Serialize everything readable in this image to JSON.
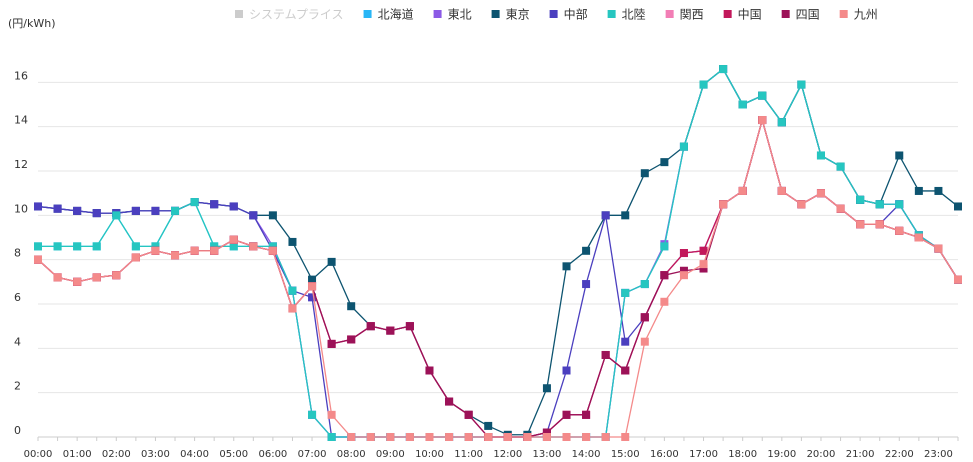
{
  "chart_data": {
    "type": "line",
    "y_label": "(円/kWh)",
    "categories": [
      "00:00",
      null,
      "01:00",
      null,
      "02:00",
      null,
      "03:00",
      null,
      "04:00",
      null,
      "05:00",
      null,
      "06:00",
      null,
      "07:00",
      null,
      "08:00",
      null,
      "09:00",
      null,
      "10:00",
      null,
      "11:00",
      null,
      "12:00",
      null,
      "13:00",
      null,
      "14:00",
      null,
      "15:00",
      null,
      "16:00",
      null,
      "17:00",
      null,
      "18:00",
      null,
      "19:00",
      null,
      "20:00",
      null,
      "21:00",
      null,
      "22:00",
      null,
      "23:00",
      null
    ],
    "ylim": [
      0,
      18
    ],
    "yticks": [
      0,
      2,
      4,
      6,
      8,
      10,
      12,
      14,
      16
    ],
    "grid": true,
    "series": [
      {
        "name": "システムプライス",
        "color": "#cccccc",
        "visible": false,
        "values": [
          null,
          null,
          null,
          null,
          null,
          null,
          null,
          null,
          null,
          null,
          null,
          null,
          null,
          null,
          null,
          null,
          null,
          null,
          null,
          null,
          null,
          null,
          null,
          null,
          null,
          null,
          null,
          null,
          null,
          null,
          null,
          null,
          null,
          null,
          null,
          null,
          null,
          null,
          null,
          null,
          null,
          null,
          null,
          null,
          null,
          null,
          null,
          null
        ]
      },
      {
        "name": "北海道",
        "color": "#29b6f6",
        "values": [
          8.6,
          8.6,
          8.6,
          8.6,
          10.0,
          8.6,
          8.6,
          10.2,
          10.6,
          8.6,
          8.6,
          8.6,
          8.6,
          6.6,
          1.0,
          0,
          0,
          0,
          0,
          0,
          0,
          0,
          0,
          0,
          0,
          0,
          0,
          0,
          0,
          0,
          6.5,
          6.9,
          8.6,
          13.1,
          15.9,
          16.6,
          15.0,
          15.4,
          14.2,
          15.9,
          12.7,
          12.2,
          10.7,
          10.5,
          10.5,
          9.1,
          8.5,
          7.1
        ]
      },
      {
        "name": "東北",
        "color": "#8c5ae6",
        "values": [
          10.4,
          10.3,
          10.2,
          10.1,
          10.1,
          10.2,
          10.2,
          10.2,
          10.6,
          10.5,
          10.4,
          10.0,
          8.6,
          6.6,
          1.0,
          0,
          0,
          0,
          0,
          0,
          0,
          0,
          0,
          0,
          0,
          0,
          0,
          0,
          0,
          0,
          6.5,
          6.9,
          8.7,
          13.1,
          15.9,
          16.6,
          15.0,
          15.4,
          14.2,
          15.9,
          12.7,
          12.2,
          10.7,
          10.5,
          10.5,
          9.1,
          8.5,
          7.1
        ]
      },
      {
        "name": "東京",
        "color": "#0d5470",
        "values": [
          10.4,
          10.3,
          10.2,
          10.1,
          10.1,
          10.2,
          10.2,
          10.2,
          10.6,
          10.5,
          10.4,
          10.0,
          10.0,
          8.8,
          7.1,
          7.9,
          5.9,
          5.0,
          4.8,
          5.0,
          3.0,
          1.6,
          1.0,
          0.5,
          0.1,
          0.1,
          2.2,
          7.7,
          8.4,
          10.0,
          10.0,
          11.9,
          12.4,
          13.1,
          15.9,
          16.6,
          15.0,
          15.4,
          14.2,
          15.9,
          12.7,
          12.2,
          10.7,
          10.5,
          12.7,
          11.1,
          11.1,
          10.4
        ]
      },
      {
        "name": "中部",
        "color": "#4b3fbf",
        "values": [
          10.4,
          10.3,
          10.2,
          10.1,
          10.1,
          10.2,
          10.2,
          10.2,
          10.6,
          10.5,
          10.4,
          10.0,
          8.4,
          6.6,
          6.3,
          0,
          0,
          0,
          0,
          0,
          0,
          0,
          0,
          0,
          0,
          0,
          0.2,
          3.0,
          6.9,
          10.0,
          4.3,
          5.4,
          7.3,
          8.3,
          8.4,
          10.5,
          11.1,
          14.3,
          11.1,
          10.5,
          11.0,
          10.3,
          9.6,
          9.6,
          10.5,
          9.1,
          8.5,
          7.1
        ]
      },
      {
        "name": "北陸",
        "color": "#26c6c0",
        "values": [
          8.6,
          8.6,
          8.6,
          8.6,
          10.0,
          8.6,
          8.6,
          10.2,
          10.6,
          8.6,
          8.6,
          8.6,
          8.6,
          6.6,
          1.0,
          0,
          0,
          0,
          0,
          0,
          0,
          0,
          0,
          0,
          0,
          0,
          0,
          0,
          0,
          0,
          6.5,
          6.9,
          8.6,
          13.1,
          15.9,
          16.6,
          15.0,
          15.4,
          14.2,
          15.9,
          12.7,
          12.2,
          10.7,
          10.5,
          10.5,
          9.1,
          8.5,
          7.1
        ]
      },
      {
        "name": "関西",
        "color": "#f27eb5",
        "values": [
          8.0,
          7.2,
          7.0,
          7.2,
          7.3,
          8.1,
          8.4,
          8.2,
          8.4,
          8.4,
          8.9,
          8.6,
          8.4,
          5.8,
          6.8,
          4.2,
          4.4,
          5.0,
          4.8,
          5.0,
          3.0,
          1.6,
          1.0,
          0,
          0,
          0,
          0.2,
          1.0,
          1.0,
          3.7,
          3.0,
          5.4,
          7.3,
          8.3,
          8.4,
          10.5,
          11.1,
          14.3,
          11.1,
          10.5,
          11.0,
          10.3,
          9.6,
          9.6,
          9.3,
          9.0,
          8.5,
          7.1
        ]
      },
      {
        "name": "中国",
        "color": "#c2185b",
        "values": [
          8.0,
          7.2,
          7.0,
          7.2,
          7.3,
          8.1,
          8.4,
          8.2,
          8.4,
          8.4,
          8.9,
          8.6,
          8.4,
          5.8,
          6.8,
          4.2,
          4.4,
          5.0,
          4.8,
          5.0,
          3.0,
          1.6,
          1.0,
          0,
          0,
          0,
          0.2,
          1.0,
          1.0,
          3.7,
          3.0,
          5.4,
          7.3,
          8.3,
          8.4,
          10.5,
          11.1,
          14.3,
          11.1,
          10.5,
          11.0,
          10.3,
          9.6,
          9.6,
          9.3,
          9.0,
          8.5,
          7.1
        ]
      },
      {
        "name": "四国",
        "color": "#9c1258",
        "values": [
          8.0,
          7.2,
          7.0,
          7.2,
          7.3,
          8.1,
          8.4,
          8.2,
          8.4,
          8.4,
          8.9,
          8.6,
          8.4,
          5.8,
          6.8,
          4.2,
          4.4,
          5.0,
          4.8,
          5.0,
          3.0,
          1.6,
          1.0,
          0,
          0,
          0,
          0.2,
          1.0,
          1.0,
          3.7,
          3.0,
          5.4,
          7.3,
          7.5,
          7.6,
          10.5,
          11.1,
          14.3,
          11.1,
          10.5,
          11.0,
          10.3,
          9.6,
          9.6,
          9.3,
          9.0,
          8.5,
          7.1
        ]
      },
      {
        "name": "九州",
        "color": "#f48a8a",
        "values": [
          8.0,
          7.2,
          7.0,
          7.2,
          7.3,
          8.1,
          8.4,
          8.2,
          8.4,
          8.4,
          8.9,
          8.6,
          8.4,
          5.8,
          6.8,
          1.0,
          0,
          0,
          0,
          0,
          0,
          0,
          0,
          0,
          0,
          0,
          0,
          0,
          0,
          0,
          0,
          4.3,
          6.1,
          7.3,
          7.8,
          10.5,
          11.1,
          14.3,
          11.1,
          10.5,
          11.0,
          10.3,
          9.6,
          9.6,
          9.3,
          9.0,
          8.5,
          7.1
        ]
      }
    ]
  }
}
